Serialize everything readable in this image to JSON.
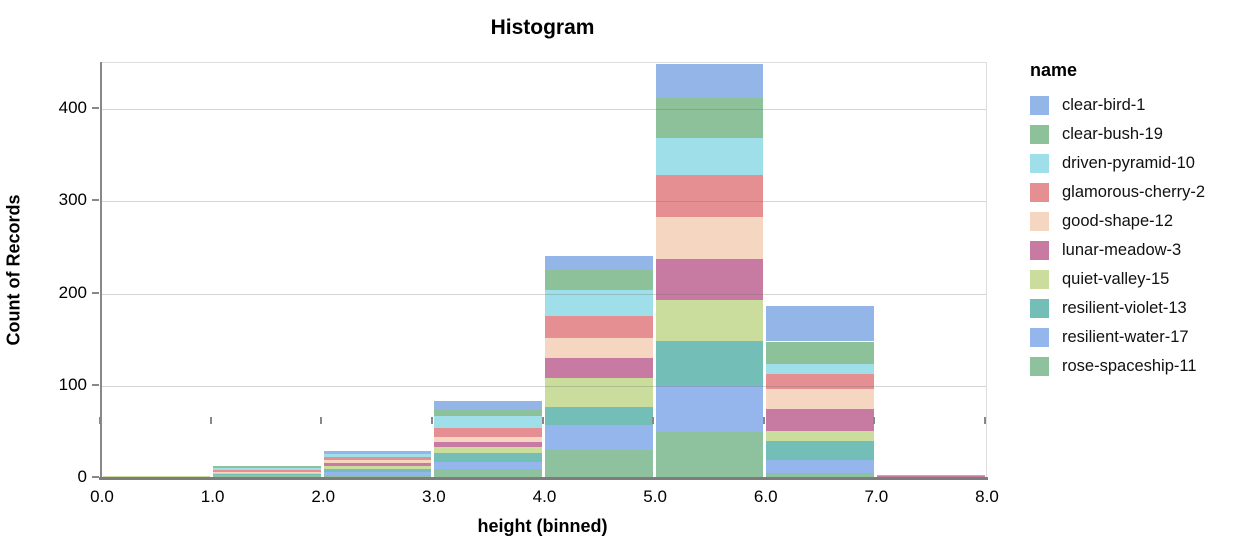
{
  "window": {
    "background": "#ffffff"
  },
  "chart_data": {
    "type": "bar",
    "variant": "stacked-histogram",
    "title": "Histogram",
    "xlabel": "height (binned)",
    "ylabel": "Count of Records",
    "legend_title": "name",
    "legend_position": "right",
    "grid": true,
    "xlim": [
      0,
      8
    ],
    "ylim": [
      0,
      450
    ],
    "x_tick_values": [
      0,
      1,
      2,
      3,
      4,
      5,
      6,
      7,
      8
    ],
    "x_tick_labels": [
      "0.0",
      "1.0",
      "2.0",
      "3.0",
      "4.0",
      "5.0",
      "6.0",
      "7.0",
      "8.0"
    ],
    "y_tick_values": [
      0,
      100,
      200,
      300,
      400
    ],
    "bin_edges": [
      0,
      1,
      2,
      3,
      4,
      5,
      6,
      7,
      8
    ],
    "bin_totals": [
      2,
      13,
      29,
      83,
      241,
      449,
      186,
      3
    ],
    "stack_order_note": "first series renders at top of stack; last series at bottom",
    "series": [
      {
        "name": "clear-bird-1",
        "color": "#94b5e7",
        "values": [
          0,
          0,
          3,
          9,
          15,
          37,
          38,
          1
        ]
      },
      {
        "name": "clear-bush-19",
        "color": "#8dc199",
        "values": [
          0,
          2,
          0,
          7,
          22,
          43,
          24,
          0
        ]
      },
      {
        "name": "driven-pyramid-10",
        "color": "#9fdfe9",
        "values": [
          0,
          2,
          3,
          13,
          28,
          40,
          11,
          0
        ]
      },
      {
        "name": "glamorous-cherry-2",
        "color": "#e58f93",
        "values": [
          0,
          2,
          4,
          10,
          24,
          46,
          17,
          0
        ]
      },
      {
        "name": "good-shape-12",
        "color": "#f5d6c1",
        "values": [
          0,
          1,
          3,
          5,
          22,
          46,
          21,
          0
        ]
      },
      {
        "name": "lunar-meadow-3",
        "color": "#c77ba2",
        "values": [
          0,
          1,
          3,
          5,
          22,
          44,
          24,
          1
        ]
      },
      {
        "name": "quiet-valley-15",
        "color": "#cadd9d",
        "values": [
          1,
          1,
          3,
          7,
          31,
          44,
          11,
          0
        ]
      },
      {
        "name": "resilient-violet-13",
        "color": "#73bfb8",
        "values": [
          0,
          1,
          4,
          10,
          20,
          49,
          20,
          0
        ]
      },
      {
        "name": "resilient-water-17",
        "color": "#94b6ec",
        "values": [
          0,
          1,
          3,
          7,
          27,
          50,
          15,
          1
        ]
      },
      {
        "name": "rose-spaceship-11",
        "color": "#8ec19d",
        "values": [
          1,
          2,
          3,
          10,
          30,
          50,
          5,
          0
        ]
      }
    ]
  },
  "style": {
    "axis_domain_color": "#888888",
    "gridline_color": "#dddddd",
    "plot_border_color": "#dddddd",
    "text_color": "#000000"
  }
}
